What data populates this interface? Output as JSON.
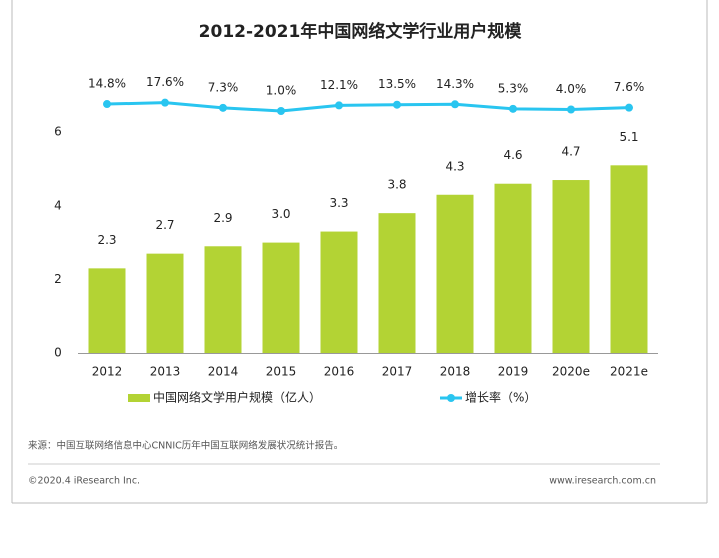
{
  "chart_data": {
    "type": "bar_line",
    "title": "2012-2021年中国网络文学行业用户规模",
    "categories": [
      "2012",
      "2013",
      "2014",
      "2015",
      "2016",
      "2017",
      "2018",
      "2019",
      "2020e",
      "2021e"
    ],
    "series": [
      {
        "name": "中国网络文学用户规模（亿人）",
        "type": "bar",
        "color": "#b3d334",
        "values": [
          2.3,
          2.7,
          2.9,
          3.0,
          3.3,
          3.8,
          4.3,
          4.6,
          4.7,
          5.1
        ],
        "value_labels": [
          "2.3",
          "2.7",
          "2.9",
          "3.0",
          "3.3",
          "3.8",
          "4.3",
          "4.6",
          "4.7",
          "5.1"
        ]
      },
      {
        "name": "增长率（%）",
        "type": "line",
        "axis": "y2",
        "color": "#29c5f0",
        "values": [
          14.8,
          17.6,
          7.3,
          1.0,
          12.1,
          13.5,
          14.3,
          5.3,
          4.0,
          7.6
        ],
        "value_labels": [
          "14.8%",
          "17.6%",
          "7.3%",
          "1.0%",
          "12.1%",
          "13.5%",
          "14.3%",
          "5.3%",
          "4.0%",
          "7.6%"
        ]
      }
    ],
    "ylim": [
      0,
      7
    ],
    "yticks": [
      0,
      2,
      4,
      6
    ],
    "y2lim": [
      -480,
      32
    ],
    "grid": false,
    "legend": "bottom"
  },
  "source": "来源：中国互联网络信息中心CNNIC历年中国互联网络发展状况统计报告。",
  "copyright": "©2020.4 iResearch Inc.",
  "website": "www.iresearch.com.cn"
}
